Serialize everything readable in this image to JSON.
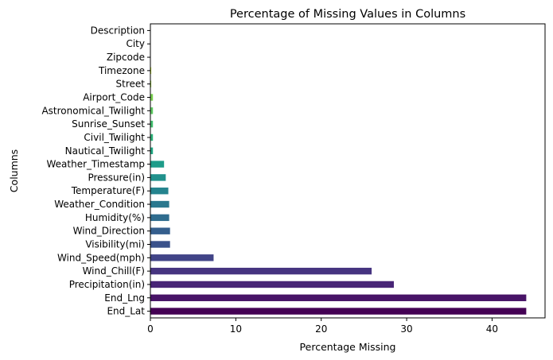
{
  "chart_data": {
    "type": "bar",
    "orientation": "horizontal",
    "title": "Percentage of Missing Values in Columns",
    "xlabel": "Percentage Missing",
    "ylabel": "Columns",
    "xlim": [
      0,
      46.2
    ],
    "xticks": [
      0,
      10,
      20,
      30,
      40
    ],
    "grid": false,
    "legend": "none",
    "colormap": "viridis",
    "categories": [
      "End_Lat",
      "End_Lng",
      "Precipitation(in)",
      "Wind_Chill(F)",
      "Wind_Speed(mph)",
      "Visibility(mi)",
      "Wind_Direction",
      "Humidity(%)",
      "Weather_Condition",
      "Temperature(F)",
      "Pressure(in)",
      "Weather_Timestamp",
      "Nautical_Twilight",
      "Civil_Twilight",
      "Sunrise_Sunset",
      "Astronomical_Twilight",
      "Airport_Code",
      "Street",
      "Timezone",
      "Zipcode",
      "City",
      "Description"
    ],
    "values": [
      44.0,
      44.0,
      28.5,
      25.9,
      7.4,
      2.3,
      2.3,
      2.2,
      2.2,
      2.1,
      1.8,
      1.6,
      0.3,
      0.3,
      0.3,
      0.3,
      0.3,
      0.1,
      0.1,
      0.0,
      0.0,
      0.0
    ],
    "colors": [
      "#440154",
      "#481467",
      "#482576",
      "#463480",
      "#414487",
      "#3b528b",
      "#355f8d",
      "#2f6c8e",
      "#2a788e",
      "#25848e",
      "#21918c",
      "#1e9c89",
      "#22a884",
      "#2fb47c",
      "#44bf70",
      "#5ec962",
      "#7ad151",
      "#9bd93c",
      "#bddf26",
      "#dfe318",
      "#f0e61d",
      "#fde725"
    ]
  }
}
